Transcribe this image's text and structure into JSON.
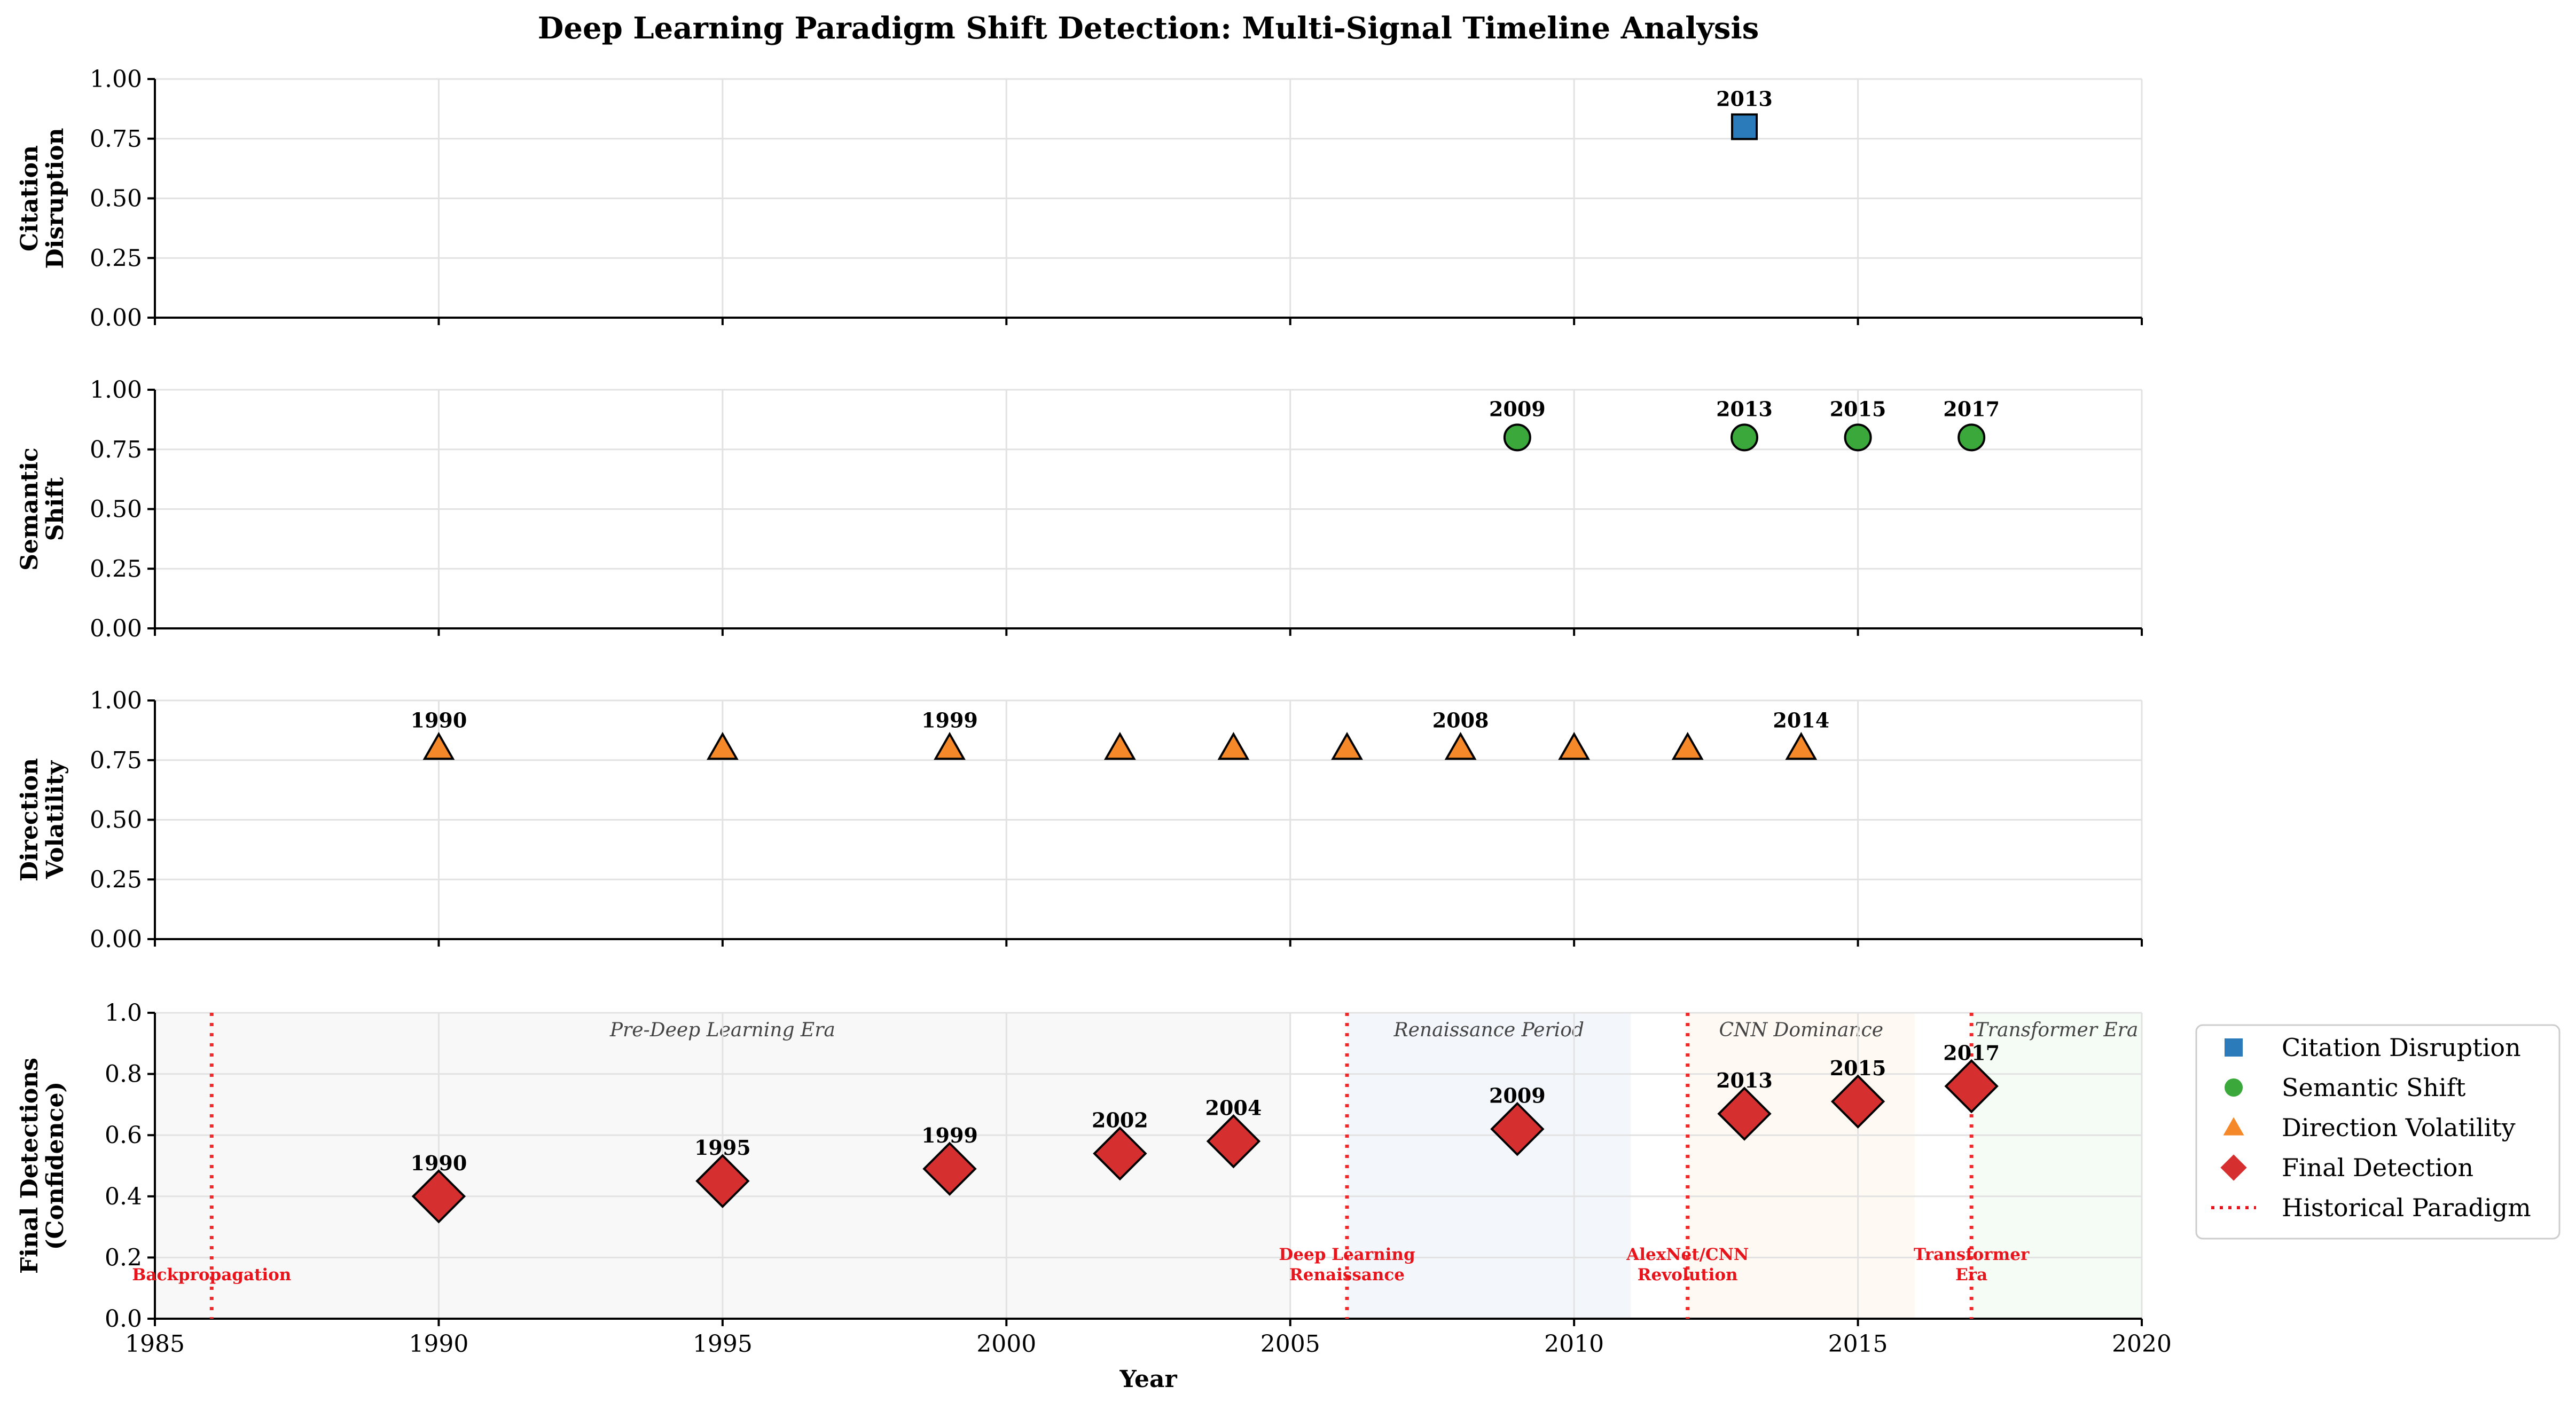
{
  "chart_data": {
    "title": "Deep Learning Paradigm Shift Detection: Multi-Signal Timeline Analysis",
    "type": "scatter",
    "xlabel": "Year",
    "xlim": [
      1985,
      2020
    ],
    "x_ticks": [
      "1985",
      "1990",
      "1995",
      "2000",
      "2005",
      "2010",
      "2015",
      "2020"
    ],
    "grid": true,
    "panels": [
      {
        "key": "citation",
        "ylabel": [
          "Citation",
          "Disruption"
        ],
        "ylim": [
          0,
          1
        ],
        "y_ticks": [
          "0.00",
          "0.25",
          "0.50",
          "0.75",
          "1.00"
        ],
        "series": "Citation Disruption",
        "marker": "square",
        "color": "#2b7bba",
        "points": [
          {
            "x": 2013,
            "y": 0.8,
            "label": "2013"
          }
        ]
      },
      {
        "key": "semantic",
        "ylabel": [
          "Semantic",
          "Shift"
        ],
        "ylim": [
          0,
          1
        ],
        "y_ticks": [
          "0.00",
          "0.25",
          "0.50",
          "0.75",
          "1.00"
        ],
        "series": "Semantic Shift",
        "marker": "circle",
        "color": "#3aa83a",
        "points": [
          {
            "x": 2009,
            "y": 0.8,
            "label": "2009"
          },
          {
            "x": 2013,
            "y": 0.8,
            "label": "2013"
          },
          {
            "x": 2015,
            "y": 0.8,
            "label": "2015"
          },
          {
            "x": 2017,
            "y": 0.8,
            "label": "2017"
          }
        ]
      },
      {
        "key": "direction",
        "ylabel": [
          "Direction",
          "Volatility"
        ],
        "ylim": [
          0,
          1
        ],
        "y_ticks": [
          "0.00",
          "0.25",
          "0.50",
          "0.75",
          "1.00"
        ],
        "series": "Direction Volatility",
        "marker": "triangle",
        "color": "#f5892a",
        "points": [
          {
            "x": 1990,
            "y": 0.8,
            "label": "1990"
          },
          {
            "x": 1995,
            "y": 0.8,
            "label": ""
          },
          {
            "x": 1999,
            "y": 0.8,
            "label": "1999"
          },
          {
            "x": 2002,
            "y": 0.8,
            "label": ""
          },
          {
            "x": 2004,
            "y": 0.8,
            "label": ""
          },
          {
            "x": 2006,
            "y": 0.8,
            "label": ""
          },
          {
            "x": 2008,
            "y": 0.8,
            "label": "2008"
          },
          {
            "x": 2010,
            "y": 0.8,
            "label": ""
          },
          {
            "x": 2012,
            "y": 0.8,
            "label": ""
          },
          {
            "x": 2014,
            "y": 0.8,
            "label": "2014"
          }
        ]
      },
      {
        "key": "final",
        "ylabel": [
          "Final Detections",
          "(Confidence)"
        ],
        "ylim": [
          0,
          1
        ],
        "y_ticks": [
          "0.0",
          "0.2",
          "0.4",
          "0.6",
          "0.8",
          "1.0"
        ],
        "series": "Final Detection",
        "marker": "diamond",
        "color": "#d62f2f",
        "points": [
          {
            "x": 1990,
            "y": 0.4,
            "label": "1990"
          },
          {
            "x": 1995,
            "y": 0.45,
            "label": "1995"
          },
          {
            "x": 1999,
            "y": 0.49,
            "label": "1999"
          },
          {
            "x": 2002,
            "y": 0.54,
            "label": "2002"
          },
          {
            "x": 2004,
            "y": 0.58,
            "label": "2004"
          },
          {
            "x": 2009,
            "y": 0.62,
            "label": "2009"
          },
          {
            "x": 2013,
            "y": 0.67,
            "label": "2013"
          },
          {
            "x": 2015,
            "y": 0.71,
            "label": "2015"
          },
          {
            "x": 2017,
            "y": 0.76,
            "label": "2017"
          }
        ],
        "eras": [
          {
            "start": 1985,
            "end": 2005,
            "label": "Pre-Deep Learning Era",
            "color": "#ebebeb"
          },
          {
            "start": 2006,
            "end": 2011,
            "label": "Renaissance Period",
            "color": "#dce8f6"
          },
          {
            "start": 2012,
            "end": 2016,
            "label": "CNN Dominance",
            "color": "#fbeede"
          },
          {
            "start": 2017,
            "end": 2020,
            "label": "Transformer Era",
            "color": "#e1f3e1"
          }
        ],
        "paradigms": [
          {
            "x": 1986,
            "label": [
              "Backpropagation"
            ]
          },
          {
            "x": 2006,
            "label": [
              "Deep Learning",
              "Renaissance"
            ]
          },
          {
            "x": 2012,
            "label": [
              "AlexNet/CNN",
              "Revolution"
            ]
          },
          {
            "x": 2017,
            "label": [
              "Transformer",
              "Era"
            ]
          }
        ]
      }
    ],
    "legend": {
      "position": "right",
      "entries": [
        {
          "label": "Citation Disruption",
          "marker": "square",
          "color": "#2b7bba"
        },
        {
          "label": "Semantic Shift",
          "marker": "circle",
          "color": "#3aa83a"
        },
        {
          "label": "Direction Volatility",
          "marker": "triangle",
          "color": "#f5892a"
        },
        {
          "label": "Final Detection",
          "marker": "diamond",
          "color": "#d62f2f"
        },
        {
          "label": "Historical Paradigm",
          "marker": "dotted-line",
          "color": "#e8141c"
        }
      ]
    }
  }
}
